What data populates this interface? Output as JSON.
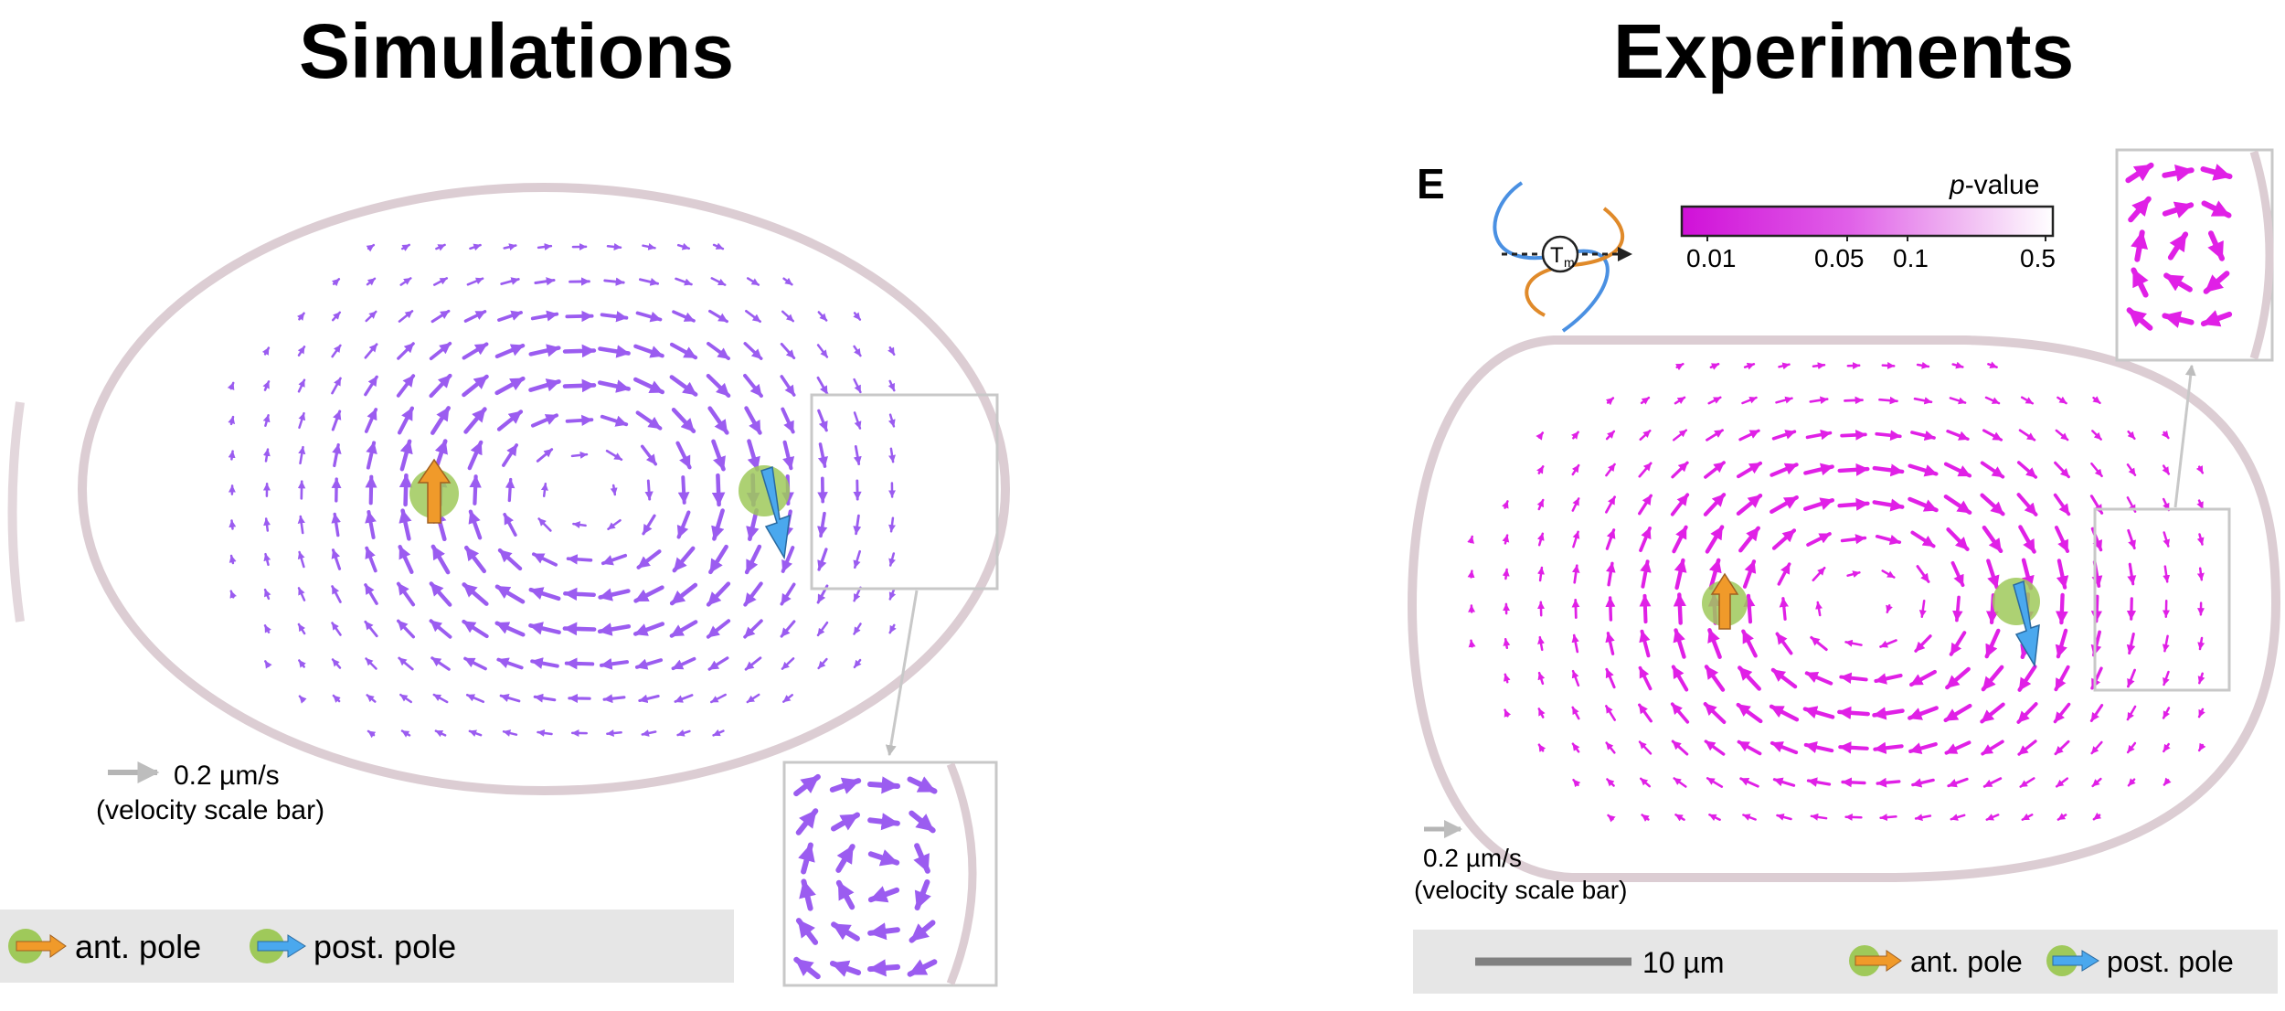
{
  "titles": {
    "left": "Simulations",
    "right": "Experiments"
  },
  "panel_letter": "E",
  "simulations": {
    "scale_value": "0.2 µm/s",
    "scale_caption": "(velocity scale bar)",
    "legend": {
      "anterior": "ant. pole",
      "posterior": "post. pole"
    }
  },
  "experiments": {
    "colorbar": {
      "title_italic": "p",
      "title_rest": "-value",
      "ticks": [
        "0.01",
        "0.05",
        "0.1",
        "0.5"
      ],
      "tick_values": [
        0.01,
        0.05,
        0.1,
        0.5
      ]
    },
    "pronucleus_symbol": "T",
    "pronucleus_subscript": "m",
    "scale_value": "0.2 µm/s",
    "scale_caption": "(velocity scale bar)",
    "length_bar": "10 µm",
    "legend": {
      "anterior": "ant. pole",
      "posterior": "post. pole"
    }
  },
  "colors": {
    "sim_arrow": "#9b5cf0",
    "exp_arrow": "#e020e6",
    "cortex": "#d9c9cf",
    "inset_frame": "#c8c8c8",
    "pronucleus": "#9fc95a",
    "anterior_arrow": "#f09a2a",
    "posterior_arrow": "#4aa8ee",
    "legend_bg": "#e6e6e6"
  }
}
